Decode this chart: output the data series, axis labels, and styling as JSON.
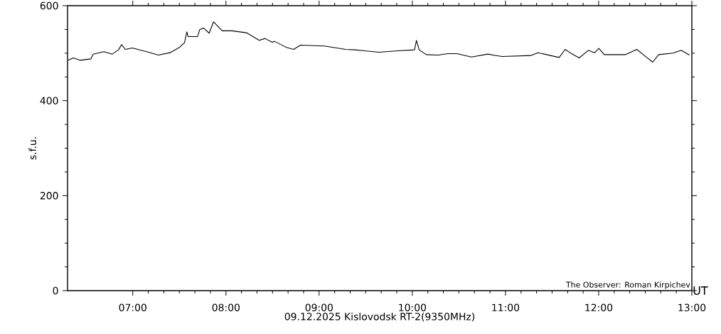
{
  "chart_data": {
    "type": "line",
    "xlabel": "09.12.2025 Kislovodsk RT-2(9350MHz)",
    "ylabel": "s.f.u.",
    "annotations": [
      "UT",
      "The Observer: Roman Kirpichev"
    ],
    "x": [
      6.308,
      6.36,
      6.435,
      6.55,
      6.576,
      6.69,
      6.78,
      6.847,
      6.88,
      6.92,
      6.995,
      7.15,
      7.275,
      7.4,
      7.5,
      7.555,
      7.58,
      7.593,
      7.695,
      7.72,
      7.76,
      7.82,
      7.866,
      7.96,
      8.065,
      8.22,
      8.357,
      8.42,
      8.496,
      8.52,
      8.61,
      8.65,
      8.726,
      8.8,
      9.056,
      9.285,
      9.387,
      9.64,
      9.845,
      10.024,
      10.044,
      10.074,
      10.15,
      10.278,
      10.38,
      10.48,
      10.634,
      10.81,
      10.9,
      10.965,
      11.27,
      11.35,
      11.576,
      11.64,
      11.7,
      11.79,
      11.89,
      11.957,
      12.003,
      12.06,
      12.29,
      12.41,
      12.49,
      12.58,
      12.644,
      12.797,
      12.886,
      12.975
    ],
    "series": [
      {
        "color": "#000000",
        "values": [
          485,
          490,
          485,
          488,
          498,
          503,
          498,
          507,
          518,
          508,
          511,
          503,
          496,
          501,
          512,
          522,
          545,
          535,
          535,
          550,
          553,
          542,
          566,
          547,
          547,
          543,
          527,
          531,
          523,
          525,
          516,
          512,
          508,
          517,
          515,
          508,
          507,
          502,
          505,
          507,
          527,
          507,
          497,
          496,
          499,
          499,
          492,
          498,
          495,
          493,
          495,
          501,
          491,
          508,
          500,
          490,
          506,
          501,
          510,
          497,
          497,
          508,
          495,
          481,
          497,
          500,
          506,
          496
        ]
      }
    ],
    "xlim": [
      6.3,
      13
    ],
    "ylim": [
      0,
      600
    ],
    "xticks": [
      {
        "value": 7,
        "label": "07:00"
      },
      {
        "value": 8,
        "label": "08:00"
      },
      {
        "value": 9,
        "label": "09:00"
      },
      {
        "value": 10,
        "label": "10:00"
      },
      {
        "value": 11,
        "label": "11:00"
      },
      {
        "value": 12,
        "label": "12:00"
      },
      {
        "value": 13,
        "label": "13:00"
      }
    ],
    "yticks": [
      0,
      200,
      400,
      600
    ],
    "grid": false,
    "marker": "none",
    "line_style": "solid"
  }
}
